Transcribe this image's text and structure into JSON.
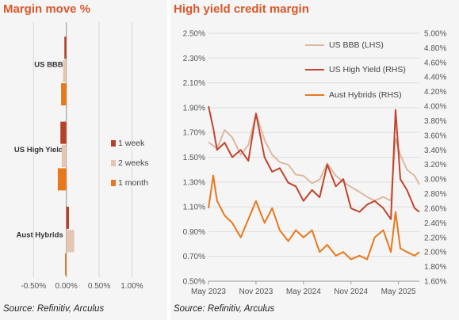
{
  "left": {
    "title": "Margin move %",
    "source": "Source: Refinitiv, Arculus"
  },
  "right": {
    "title": "High yield credit margin",
    "source": "Source: Refinitiv, Arculus"
  },
  "chart_data": [
    {
      "type": "bar",
      "orientation": "horizontal",
      "title": "Margin move %",
      "categories": [
        "US BBB",
        "US High Yield",
        "Aust Hybrids"
      ],
      "series": [
        {
          "name": "1 week",
          "color": "#b5412a",
          "values": [
            -0.03,
            -0.09,
            0.04
          ]
        },
        {
          "name": "2 weeks",
          "color": "#e6c5b1",
          "values": [
            -0.05,
            -0.07,
            0.12
          ]
        },
        {
          "name": "1 month",
          "color": "#e8781d",
          "values": [
            -0.08,
            -0.13,
            -0.02
          ]
        }
      ],
      "xlim": [
        -0.6,
        1.2
      ],
      "xticks": [
        "-0.50%",
        "0.00%",
        "0.50%",
        "1.00%"
      ],
      "xtick_values": [
        -0.5,
        0,
        0.5,
        1.0
      ],
      "grid": true,
      "legend": "right"
    },
    {
      "type": "line",
      "title": "High yield credit margin",
      "x_ticks": [
        "May 2023",
        "Nov 2023",
        "May 2024",
        "Nov 2024",
        "May 2025"
      ],
      "x_tick_values": [
        2023.33,
        2023.83,
        2024.33,
        2024.83,
        2025.33
      ],
      "xlim": [
        2023.33,
        2025.55
      ],
      "left_axis": {
        "ylim": [
          0.5,
          2.5
        ],
        "ticks": [
          "0.50%",
          "0.70%",
          "0.90%",
          "1.10%",
          "1.30%",
          "1.50%",
          "1.70%",
          "1.90%",
          "2.10%",
          "2.30%",
          "2.50%"
        ],
        "tick_values": [
          0.5,
          0.7,
          0.9,
          1.1,
          1.3,
          1.5,
          1.7,
          1.9,
          2.1,
          2.3,
          2.5
        ]
      },
      "right_axis": {
        "ylim": [
          1.6,
          5.0
        ],
        "ticks": [
          "1.60%",
          "1.80%",
          "2.00%",
          "2.20%",
          "2.40%",
          "2.60%",
          "2.80%",
          "3.00%",
          "3.20%",
          "3.40%",
          "3.60%",
          "3.80%",
          "4.00%",
          "4.20%",
          "4.40%",
          "4.60%",
          "4.80%",
          "5.00%"
        ],
        "tick_values": [
          1.6,
          1.8,
          2.0,
          2.2,
          2.4,
          2.6,
          2.8,
          3.0,
          3.2,
          3.4,
          3.6,
          3.8,
          4.0,
          4.2,
          4.4,
          4.6,
          4.8,
          5.0
        ]
      },
      "grid": true,
      "legend": "top-right",
      "series": [
        {
          "name": "US BBB (LHS)",
          "axis": "left",
          "color": "#dcb9a0",
          "x": [
            2023.33,
            2023.42,
            2023.5,
            2023.58,
            2023.67,
            2023.75,
            2023.83,
            2023.92,
            2024.0,
            2024.08,
            2024.17,
            2024.25,
            2024.33,
            2024.42,
            2024.5,
            2024.58,
            2024.67,
            2024.75,
            2024.83,
            2024.92,
            2025.0,
            2025.08,
            2025.17,
            2025.25,
            2025.3,
            2025.35,
            2025.42,
            2025.5,
            2025.55
          ],
          "values": [
            1.62,
            1.57,
            1.72,
            1.66,
            1.52,
            1.6,
            1.85,
            1.64,
            1.52,
            1.46,
            1.44,
            1.36,
            1.35,
            1.29,
            1.32,
            1.45,
            1.35,
            1.3,
            1.26,
            1.22,
            1.18,
            1.15,
            1.18,
            1.15,
            1.65,
            1.52,
            1.4,
            1.35,
            1.28
          ]
        },
        {
          "name": "US High Yield (RHS)",
          "axis": "right",
          "color": "#c0452e",
          "x": [
            2023.33,
            2023.38,
            2023.42,
            2023.5,
            2023.58,
            2023.67,
            2023.75,
            2023.83,
            2023.92,
            2024.0,
            2024.08,
            2024.17,
            2024.25,
            2024.33,
            2024.42,
            2024.5,
            2024.58,
            2024.67,
            2024.75,
            2024.83,
            2024.92,
            2025.0,
            2025.08,
            2025.17,
            2025.25,
            2025.3,
            2025.35,
            2025.42,
            2025.5,
            2025.55
          ],
          "values": [
            4.0,
            3.7,
            3.4,
            3.5,
            3.3,
            3.4,
            3.25,
            3.9,
            3.3,
            3.1,
            3.15,
            2.95,
            2.9,
            2.7,
            2.85,
            2.75,
            3.2,
            2.9,
            3.0,
            2.6,
            2.55,
            2.65,
            2.7,
            2.6,
            2.45,
            3.95,
            3.0,
            2.85,
            2.6,
            2.55
          ]
        },
        {
          "name": "Aust Hybrids (RHS)",
          "axis": "right",
          "color": "#e8781d",
          "x": [
            2023.33,
            2023.38,
            2023.42,
            2023.5,
            2023.58,
            2023.67,
            2023.75,
            2023.83,
            2023.92,
            2024.0,
            2024.08,
            2024.17,
            2024.25,
            2024.33,
            2024.42,
            2024.5,
            2024.58,
            2024.67,
            2024.75,
            2024.83,
            2024.92,
            2025.0,
            2025.08,
            2025.17,
            2025.25,
            2025.3,
            2025.35,
            2025.42,
            2025.5,
            2025.55
          ],
          "values": [
            2.6,
            3.05,
            2.7,
            2.5,
            2.4,
            2.2,
            2.45,
            2.7,
            2.4,
            2.6,
            2.3,
            2.15,
            2.3,
            2.2,
            2.3,
            2.0,
            2.1,
            1.95,
            2.0,
            1.9,
            1.95,
            1.9,
            2.2,
            2.3,
            2.0,
            2.55,
            2.05,
            2.0,
            1.95,
            2.0
          ]
        }
      ]
    }
  ]
}
